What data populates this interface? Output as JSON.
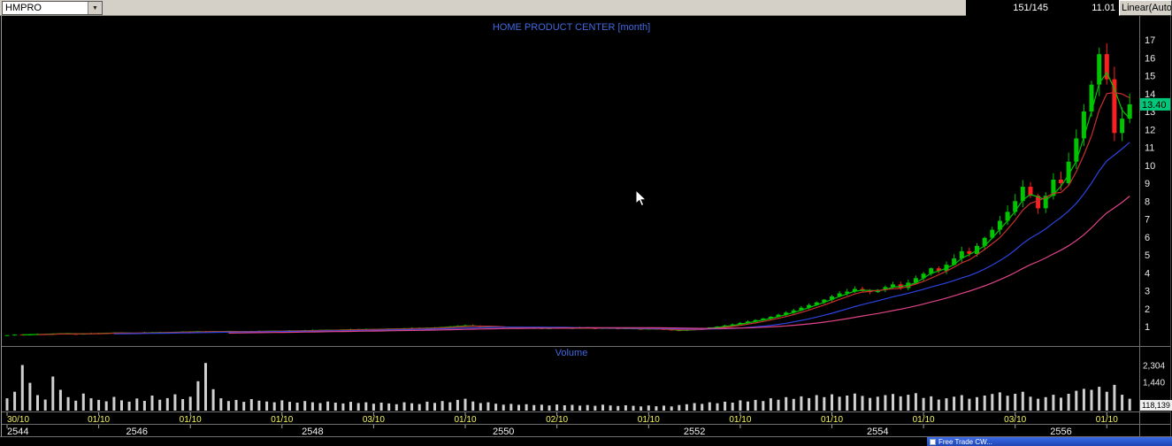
{
  "toolbar": {
    "symbol": "HMPRO",
    "bar_count": "151/145",
    "value": "11.01",
    "scale_mode": "Linear(Auto"
  },
  "chart": {
    "title": "HOME PRODUCT CENTER [month]",
    "volume_label": "Volume"
  },
  "taskbar": {
    "item_text": "Free Trade CW..."
  },
  "colors": {
    "background": "#000000",
    "candle_up": "#00c400",
    "candle_down": "#fa2020",
    "volume_bar": "#d0d0d0",
    "accent_title": "#4169e1",
    "date_label": "#f5f55a",
    "axis_text": "#e8e8e8",
    "last_price_bg": "#00c87a",
    "toolbar_bg": "#d4d0c8",
    "taskbar_bg": "#2a56cc"
  },
  "chart_data": {
    "type": "candlestick",
    "symbol": "HMPRO",
    "title": "HOME PRODUCT CENTER [month]",
    "timeframe": "monthly",
    "legend_position": "none",
    "grid": false,
    "price_axis": {
      "min": 1,
      "max": 17,
      "step": 1
    },
    "last_price": 13.4,
    "last_price_label": "13.40",
    "volume_axis_ticks": [
      {
        "value": 2304,
        "label": "2,304"
      },
      {
        "value": 1440,
        "label": "1,440"
      }
    ],
    "volume_last_label": "118,139",
    "moving_averages": [
      {
        "name": "ma-fast",
        "period": 3,
        "color": "#00c400"
      },
      {
        "name": "ma-medium",
        "period": 5,
        "color": "#c83030"
      },
      {
        "name": "ma-slow",
        "period": 15,
        "color": "#2d44e0"
      },
      {
        "name": "ma-slowest",
        "period": 30,
        "color": "#e04488"
      }
    ],
    "closes": [
      0.52,
      0.55,
      0.53,
      0.56,
      0.58,
      0.56,
      0.6,
      0.62,
      0.59,
      0.57,
      0.6,
      0.63,
      0.61,
      0.64,
      0.66,
      0.63,
      0.61,
      0.64,
      0.67,
      0.65,
      0.68,
      0.66,
      0.69,
      0.71,
      0.69,
      0.72,
      0.7,
      0.73,
      0.71,
      0.74,
      0.72,
      0.7,
      0.73,
      0.75,
      0.73,
      0.76,
      0.74,
      0.77,
      0.75,
      0.78,
      0.8,
      0.78,
      0.81,
      0.79,
      0.82,
      0.84,
      0.82,
      0.85,
      0.83,
      0.86,
      0.88,
      0.86,
      0.89,
      0.91,
      0.89,
      0.92,
      0.95,
      0.97,
      1.0,
      1.03,
      1.06,
      1.02,
      0.98,
      1.01,
      0.97,
      0.94,
      0.91,
      0.93,
      0.9,
      0.92,
      0.89,
      0.91,
      0.93,
      0.9,
      0.92,
      0.94,
      0.91,
      0.89,
      0.92,
      0.9,
      0.88,
      0.9,
      0.87,
      0.85,
      0.88,
      0.86,
      0.83,
      0.8,
      0.77,
      0.82,
      0.86,
      0.9,
      0.95,
      1.0,
      1.06,
      1.12,
      1.2,
      1.28,
      1.36,
      1.45,
      1.55,
      1.66,
      1.78,
      1.9,
      2.05,
      2.2,
      2.35,
      2.5,
      2.68,
      2.85,
      2.95,
      3.1,
      3.02,
      2.92,
      3.05,
      3.2,
      3.35,
      3.15,
      3.45,
      3.7,
      3.95,
      4.25,
      4.1,
      4.45,
      4.8,
      5.2,
      5.05,
      5.5,
      5.95,
      6.4,
      6.9,
      7.4,
      8.0,
      8.8,
      8.3,
      7.6,
      8.3,
      9.2,
      9.0,
      10.2,
      11.5,
      13.0,
      14.5,
      16.2,
      14.8,
      11.8,
      12.6,
      13.4
    ],
    "volumes": [
      620,
      950,
      2300,
      1400,
      780,
      560,
      1720,
      1050,
      680,
      500,
      860,
      620,
      540,
      470,
      690,
      520,
      450,
      610,
      490,
      760,
      550,
      630,
      820,
      580,
      700,
      1480,
      2400,
      1080,
      620,
      480,
      540,
      440,
      580,
      500,
      460,
      420,
      520,
      440,
      400,
      480,
      420,
      380,
      460,
      400,
      360,
      440,
      380,
      420,
      350,
      400,
      360,
      320,
      420,
      370,
      330,
      450,
      390,
      480,
      420,
      540,
      600,
      460,
      380,
      420,
      350,
      300,
      340,
      290,
      320,
      280,
      300,
      260,
      310,
      270,
      290,
      250,
      280,
      240,
      300,
      260,
      230,
      270,
      240,
      210,
      260,
      220,
      250,
      210,
      280,
      320,
      380,
      340,
      420,
      370,
      450,
      400,
      520,
      460,
      540,
      480,
      620,
      550,
      680,
      590,
      720,
      630,
      780,
      680,
      820,
      700,
      760,
      860,
      740,
      640,
      700,
      780,
      840,
      720,
      800,
      880,
      640,
      720,
      560,
      620,
      700,
      780,
      600,
      680,
      760,
      840,
      920,
      750,
      850,
      950,
      700,
      600,
      680,
      800,
      650,
      850,
      1000,
      1100,
      1050,
      1200,
      950,
      1300,
      800,
      600
    ],
    "x_labels": [
      {
        "i": 0,
        "label": "30/10"
      },
      {
        "i": 12,
        "label": "01/10"
      },
      {
        "i": 24,
        "label": "01/10"
      },
      {
        "i": 36,
        "label": "01/10"
      },
      {
        "i": 48,
        "label": "03/10"
      },
      {
        "i": 60,
        "label": "01/10"
      },
      {
        "i": 72,
        "label": "02/10"
      },
      {
        "i": 84,
        "label": "01/10"
      },
      {
        "i": 96,
        "label": "01/10"
      },
      {
        "i": 108,
        "label": "01/10"
      },
      {
        "i": 120,
        "label": "01/10"
      },
      {
        "i": 132,
        "label": "03/10"
      },
      {
        "i": 144,
        "label": "01/10"
      }
    ],
    "year_labels": [
      {
        "i": 0,
        "label": "2544"
      },
      {
        "i": 17,
        "label": "2546"
      },
      {
        "i": 40,
        "label": "2548"
      },
      {
        "i": 65,
        "label": "2550"
      },
      {
        "i": 90,
        "label": "2552"
      },
      {
        "i": 114,
        "label": "2554"
      },
      {
        "i": 138,
        "label": "2556"
      }
    ]
  }
}
